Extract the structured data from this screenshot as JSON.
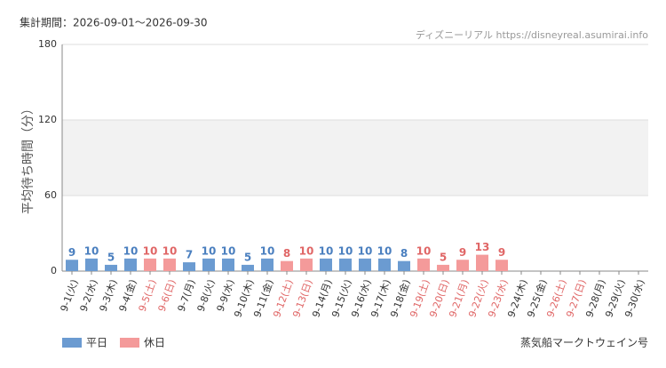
{
  "chart_data": {
    "type": "bar",
    "period": "集計期間：2026-09-01～2026-09-30",
    "source": "ディズニーリアル https://disneyreal.asumirai.info",
    "y_label": "平均待ち時間（分）",
    "footer": "蒸気船マークトウェイン号",
    "categories": [
      "9-1(火)",
      "9-2(水)",
      "9-3(木)",
      "9-4(金)",
      "9-5(土)",
      "9-6(日)",
      "9-7(月)",
      "9-8(火)",
      "9-9(水)",
      "9-10(木)",
      "9-11(金)",
      "9-12(土)",
      "9-13(日)",
      "9-14(月)",
      "9-15(火)",
      "9-16(水)",
      "9-17(木)",
      "9-18(金)",
      "9-19(土)",
      "9-20(日)",
      "9-21(月)",
      "9-22(火)",
      "9-23(水)",
      "9-24(木)",
      "9-25(金)",
      "9-26(土)",
      "9-27(日)",
      "9-28(月)",
      "9-29(火)",
      "9-30(水)"
    ],
    "category_colors": [
      "#333",
      "#333",
      "#333",
      "#333",
      "#e06666",
      "#e06666",
      "#333",
      "#333",
      "#333",
      "#333",
      "#333",
      "#e06666",
      "#e06666",
      "#333",
      "#333",
      "#333",
      "#333",
      "#333",
      "#e06666",
      "#e06666",
      "#e06666",
      "#e06666",
      "#e06666",
      "#333",
      "#333",
      "#e06666",
      "#e06666",
      "#333",
      "#333",
      "#333"
    ],
    "series": [
      {
        "name": "平日",
        "color": "#6b9bd1",
        "label_color": "#4a7fbf",
        "values": [
          9,
          10,
          5,
          10,
          null,
          null,
          7,
          10,
          10,
          5,
          10,
          null,
          null,
          10,
          10,
          10,
          10,
          8,
          null,
          null,
          null,
          null,
          null,
          null,
          null,
          null,
          null,
          null,
          null,
          null
        ]
      },
      {
        "name": "休日",
        "color": "#f49a9a",
        "label_color": "#e06666",
        "values": [
          null,
          null,
          null,
          null,
          10,
          10,
          null,
          null,
          null,
          null,
          null,
          8,
          10,
          null,
          null,
          null,
          null,
          null,
          10,
          5,
          9,
          13,
          9,
          null,
          null,
          null,
          null,
          null,
          null,
          null
        ]
      }
    ],
    "ylim": [
      0,
      180
    ],
    "yticks": [
      0,
      60,
      120,
      180
    ],
    "grid": true
  }
}
